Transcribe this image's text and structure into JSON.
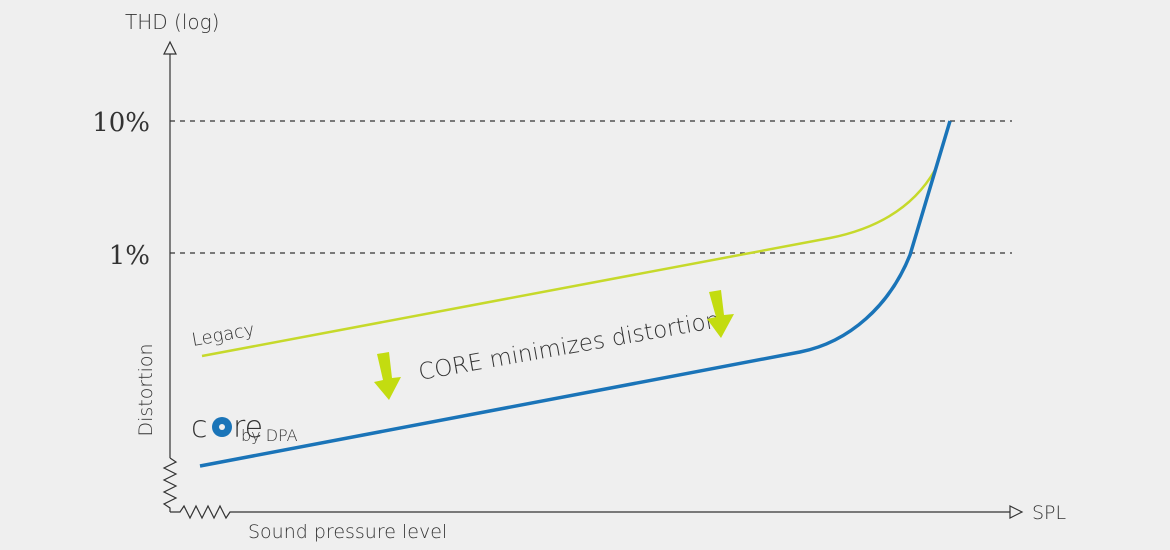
{
  "axes": {
    "y_title": "THD (log)",
    "y_labels": [
      "10%",
      "1%"
    ],
    "y_side_title": "Distortion",
    "x_end_label": "SPL",
    "x_title": "Sound pressure level"
  },
  "curves": {
    "legacy": "Legacy",
    "annotation": "CORE minimizes distortion"
  },
  "logo": {
    "prefix": "c",
    "suffix": "re",
    "byline": "by DPA"
  }
}
